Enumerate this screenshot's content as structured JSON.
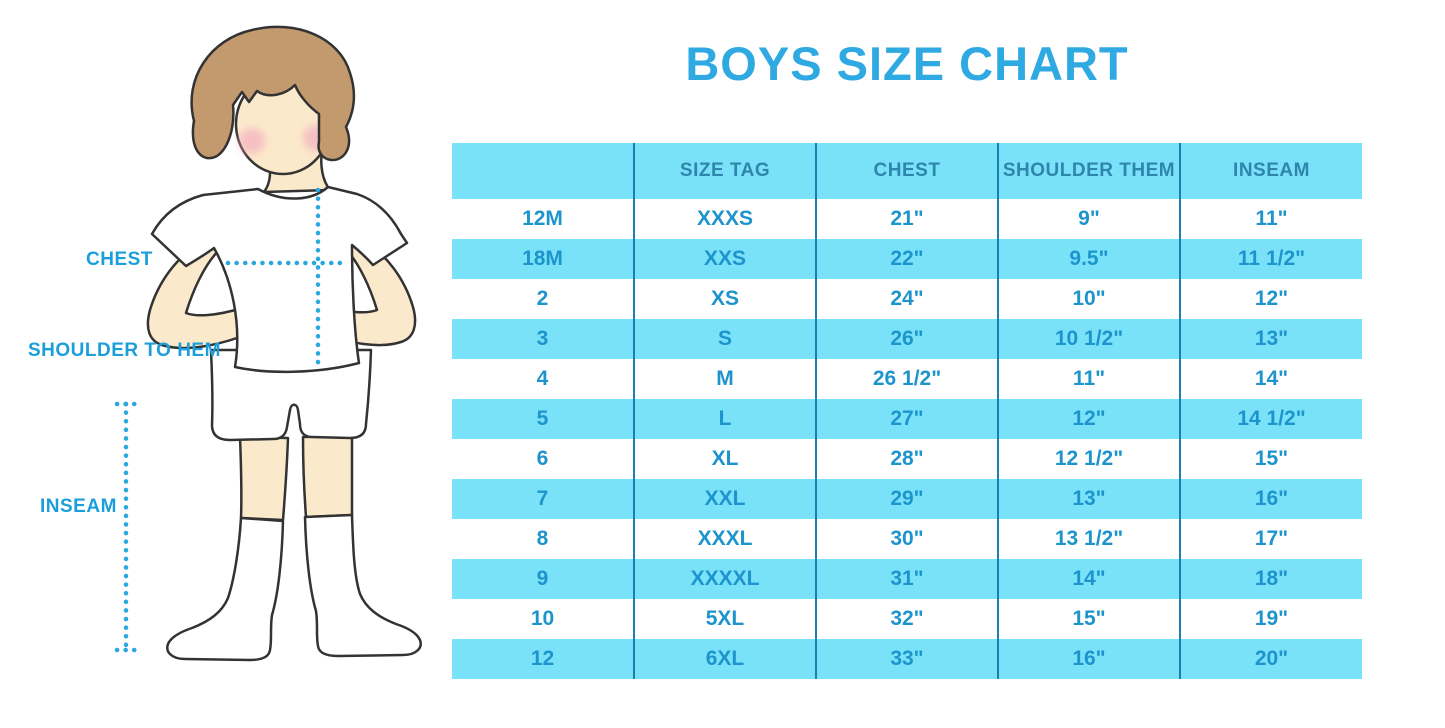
{
  "title": "BOYS SIZE CHART",
  "figure": {
    "labels": {
      "chest": "CHEST",
      "shoulder_to_hem": "SHOULDER TO HEM",
      "inseam": "INSEAM"
    }
  },
  "chart_data": {
    "type": "table",
    "title": "BOYS SIZE CHART",
    "columns": [
      "",
      "SIZE TAG",
      "CHEST",
      "SHOULDER THEM",
      "INSEAM"
    ],
    "rows": [
      [
        "12M",
        "XXXS",
        "21\"",
        "9\"",
        "11\""
      ],
      [
        "18M",
        "XXS",
        "22\"",
        "9.5\"",
        "11 1/2\""
      ],
      [
        "2",
        "XS",
        "24\"",
        "10\"",
        "12\""
      ],
      [
        "3",
        "S",
        "26\"",
        "10 1/2\"",
        "13\""
      ],
      [
        "4",
        "M",
        "26 1/2\"",
        "11\"",
        "14\""
      ],
      [
        "5",
        "L",
        "27\"",
        "12\"",
        "14 1/2\""
      ],
      [
        "6",
        "XL",
        "28\"",
        "12 1/2\"",
        "15\""
      ],
      [
        "7",
        "XXL",
        "29\"",
        "13\"",
        "16\""
      ],
      [
        "8",
        "XXXL",
        "30\"",
        "13 1/2\"",
        "17\""
      ],
      [
        "9",
        "XXXXL",
        "31\"",
        "14\"",
        "18\""
      ],
      [
        "10",
        "5XL",
        "32\"",
        "15\"",
        "19\""
      ],
      [
        "12",
        "6XL",
        "33\"",
        "16\"",
        "20\""
      ]
    ]
  },
  "colors": {
    "title_text": "#2FA9E1",
    "table_header_bg": "#79E2F9",
    "table_header_text": "#2E86AD",
    "table_row_alt_bg": "#79E2F9",
    "table_cell_text": "#1D94CC",
    "table_divider": "#1C7FAD",
    "measure_line": "#29A8E0",
    "label_text": "#1A9FDA",
    "hair": "#C29A6E",
    "skin": "#FBE9CB",
    "blush": "#F3A9BE",
    "outline": "#333333"
  }
}
